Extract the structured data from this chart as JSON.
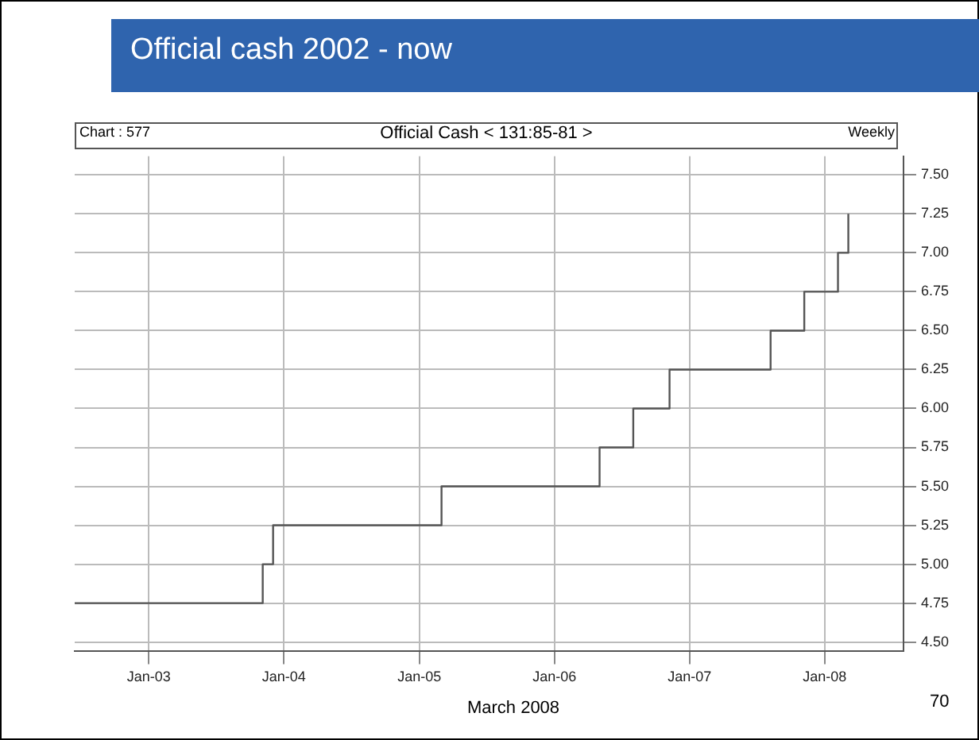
{
  "chart_data": {
    "type": "step",
    "title": "Official cash 2002 - now",
    "subtitle": "Official Cash < 131:85-81 >",
    "annotations": [
      "Chart : 577",
      "Weekly",
      "March 2008",
      "70"
    ],
    "x": [
      "2002-06-15",
      "2003-11-05",
      "2003-12-03",
      "2005-03-02",
      "2006-05-03",
      "2006-08-02",
      "2006-11-08",
      "2007-08-08",
      "2007-11-07",
      "2008-02-06",
      "2008-03-05"
    ],
    "values": [
      4.75,
      5.0,
      5.25,
      5.5,
      5.75,
      6.0,
      6.25,
      6.5,
      6.75,
      7.0,
      7.25
    ],
    "color": "#555555",
    "xlim": [
      "2002-06-15",
      "2008-08-01"
    ],
    "xticks": [
      {
        "value": "2003-01-01",
        "label": "Jan-03"
      },
      {
        "value": "2004-01-01",
        "label": "Jan-04"
      },
      {
        "value": "2005-01-01",
        "label": "Jan-05"
      },
      {
        "value": "2006-01-01",
        "label": "Jan-06"
      },
      {
        "value": "2007-01-01",
        "label": "Jan-07"
      },
      {
        "value": "2008-01-01",
        "label": "Jan-08"
      }
    ],
    "ylim": [
      4.44,
      7.62
    ],
    "yticks": [
      {
        "value": 4.5,
        "label": "4.50"
      },
      {
        "value": 4.75,
        "label": "4.75"
      },
      {
        "value": 5,
        "label": "5.00"
      },
      {
        "value": 5.25,
        "label": "5.25"
      },
      {
        "value": 5.5,
        "label": "5.50"
      },
      {
        "value": 5.75,
        "label": "5.75"
      },
      {
        "value": 6,
        "label": "6.00"
      },
      {
        "value": 6.25,
        "label": "6.25"
      },
      {
        "value": 6.5,
        "label": "6.50"
      },
      {
        "value": 6.75,
        "label": "6.75"
      },
      {
        "value": 7,
        "label": "7.00"
      },
      {
        "value": 7.25,
        "label": "7.25"
      },
      {
        "value": 7.5,
        "label": "7.50"
      }
    ],
    "grid": true,
    "legend": false,
    "marker": "none",
    "line_style": "solid"
  }
}
